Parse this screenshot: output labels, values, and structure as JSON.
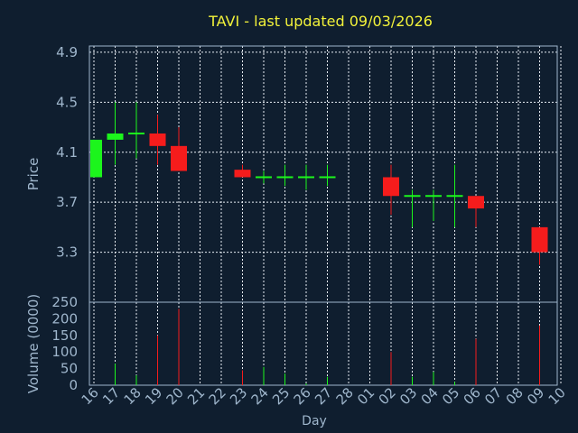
{
  "chart_data": {
    "type": "candlestick",
    "title": "TAVI - last updated 09/03/2026",
    "xlabel": "Day",
    "price_panel": {
      "ylabel": "Price",
      "ylim": [
        2.9,
        4.95
      ],
      "yticks": [
        "4.9",
        "4.5",
        "4.1",
        "3.7",
        "3.3"
      ],
      "grid": true
    },
    "volume_panel": {
      "ylabel": "Volume (0000)",
      "ylim": [
        0,
        250
      ],
      "yticks": [
        "250",
        "200",
        "150",
        "100",
        "50",
        "0"
      ]
    },
    "x_tick_labels": [
      "16",
      "17",
      "18",
      "19",
      "20",
      "21",
      "22",
      "23",
      "24",
      "25",
      "26",
      "27",
      "28",
      "01",
      "02",
      "03",
      "04",
      "05",
      "06",
      "07",
      "08",
      "09",
      "10"
    ],
    "candles": [
      {
        "day": "16",
        "open": 3.9,
        "close": 4.2,
        "high": 4.2,
        "low": 3.9,
        "volume": 0,
        "color": "up"
      },
      {
        "day": "17",
        "open": 4.2,
        "close": 4.25,
        "high": 4.5,
        "low": 4.0,
        "volume": 65,
        "color": "up"
      },
      {
        "day": "18",
        "open": 4.25,
        "close": 4.25,
        "high": 4.5,
        "low": 4.05,
        "volume": 30,
        "color": "up"
      },
      {
        "day": "19",
        "open": 4.25,
        "close": 4.15,
        "high": 4.4,
        "low": 4.0,
        "volume": 150,
        "color": "down"
      },
      {
        "day": "20",
        "open": 4.15,
        "close": 3.95,
        "high": 4.3,
        "low": 3.95,
        "volume": 230,
        "color": "down"
      },
      {
        "day": "23",
        "open": 3.96,
        "close": 3.9,
        "high": 4.0,
        "low": 3.9,
        "volume": 45,
        "color": "down"
      },
      {
        "day": "24",
        "open": 3.9,
        "close": 3.9,
        "high": 3.95,
        "low": 3.85,
        "volume": 55,
        "color": "up"
      },
      {
        "day": "25",
        "open": 3.9,
        "close": 3.9,
        "high": 4.0,
        "low": 3.83,
        "volume": 35,
        "color": "up"
      },
      {
        "day": "26",
        "open": 3.9,
        "close": 3.9,
        "high": 4.0,
        "low": 3.8,
        "volume": 5,
        "color": "up"
      },
      {
        "day": "27",
        "open": 3.9,
        "close": 3.9,
        "high": 4.0,
        "low": 3.83,
        "volume": 25,
        "color": "up"
      },
      {
        "day": "02",
        "open": 3.9,
        "close": 3.75,
        "high": 4.0,
        "low": 3.6,
        "volume": 100,
        "color": "down"
      },
      {
        "day": "03",
        "open": 3.75,
        "close": 3.75,
        "high": 3.8,
        "low": 3.5,
        "volume": 25,
        "color": "up"
      },
      {
        "day": "04",
        "open": 3.75,
        "close": 3.75,
        "high": 3.8,
        "low": 3.55,
        "volume": 40,
        "color": "up"
      },
      {
        "day": "05",
        "open": 3.75,
        "close": 3.75,
        "high": 4.0,
        "low": 3.5,
        "volume": 10,
        "color": "up"
      },
      {
        "day": "06",
        "open": 3.75,
        "close": 3.65,
        "high": 3.75,
        "low": 3.5,
        "volume": 140,
        "color": "down"
      },
      {
        "day": "09",
        "open": 3.5,
        "close": 3.3,
        "high": 3.5,
        "low": 3.2,
        "volume": 180,
        "color": "down"
      }
    ],
    "colors": {
      "background": "#0f1e2f",
      "plot_border": "#9fb6cc",
      "grid": "#e8eef5",
      "title": "#f2f23a",
      "tick_text": "#9fb6cc",
      "up": "#1cf51c",
      "down": "#f51c1c"
    }
  }
}
